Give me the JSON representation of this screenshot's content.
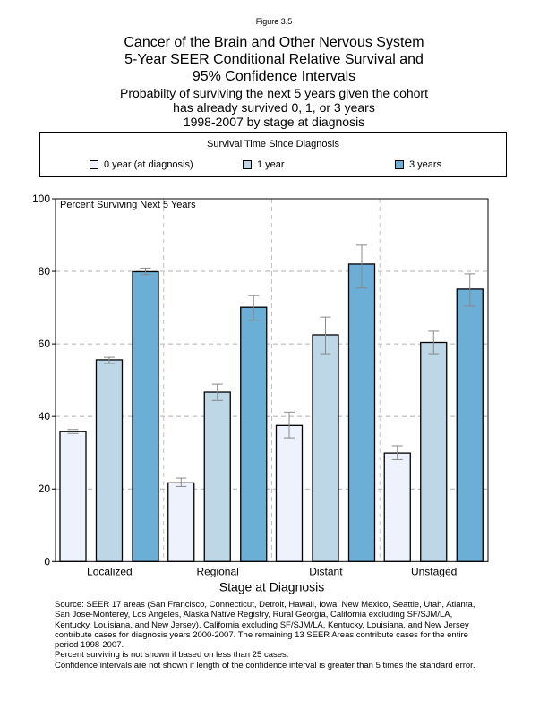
{
  "figure_label": "Figure 3.5",
  "title_lines": [
    "Cancer of the Brain and Other Nervous System",
    "5-Year SEER Conditional Relative Survival and",
    "95% Confidence Intervals"
  ],
  "subtitle_lines": [
    "Probabilty of surviving the next 5 years given the cohort",
    "has already survived 0, 1, or 3 years",
    "1998-2007 by stage at diagnosis"
  ],
  "chart_data": {
    "type": "bar",
    "ylabel": "Percent Surviving Next 5 Years",
    "xlabel": "Stage at Diagnosis",
    "ylim": [
      0,
      100
    ],
    "yticks": [
      0,
      20,
      40,
      60,
      80,
      100
    ],
    "grid": true,
    "categories": [
      "Localized",
      "Regional",
      "Distant",
      "Unstaged"
    ],
    "legend": {
      "title": "Survival Time Since Diagnosis",
      "placement": "top"
    },
    "series": [
      {
        "name": "0 year (at diagnosis)",
        "color": "#eef2fc",
        "values": [
          35.8,
          21.7,
          37.5,
          29.9
        ],
        "ci_low": [
          35.3,
          20.7,
          34.1,
          28.1
        ],
        "ci_high": [
          36.4,
          23.0,
          41.2,
          31.9
        ]
      },
      {
        "name": "1 year",
        "color": "#bdd7e7",
        "values": [
          55.6,
          46.7,
          62.5,
          60.4
        ],
        "ci_low": [
          54.6,
          44.4,
          57.3,
          57.3
        ],
        "ci_high": [
          56.3,
          48.9,
          67.4,
          63.5
        ]
      },
      {
        "name": "3 years",
        "color": "#6baed6",
        "values": [
          79.9,
          70.1,
          82.0,
          75.1
        ],
        "ci_low": [
          79.1,
          66.5,
          75.4,
          70.4
        ],
        "ci_high": [
          80.9,
          73.3,
          87.2,
          79.3
        ]
      }
    ]
  },
  "source_lines": [
    "Source:  SEER 17 areas (San Francisco, Connecticut, Detroit, Hawaii, Iowa, New Mexico, Seattle, Utah, Atlanta,",
    "San Jose-Monterey, Los Angeles, Alaska Native Registry, Rural Georgia, California excluding SF/SJM/LA,",
    "Kentucky, Louisiana, and New Jersey). California excluding SF/SJM/LA, Kentucky, Louisiana, and New Jersey",
    "contribute cases for diagnosis years 2000-2007. The remaining 13 SEER Areas contribute cases for the entire",
    "period 1998-2007.",
    "Percent surviving is not shown if based on less than 25 cases.",
    "Confidence intervals are not shown if length of the confidence interval is greater than 5 times the standard error."
  ]
}
